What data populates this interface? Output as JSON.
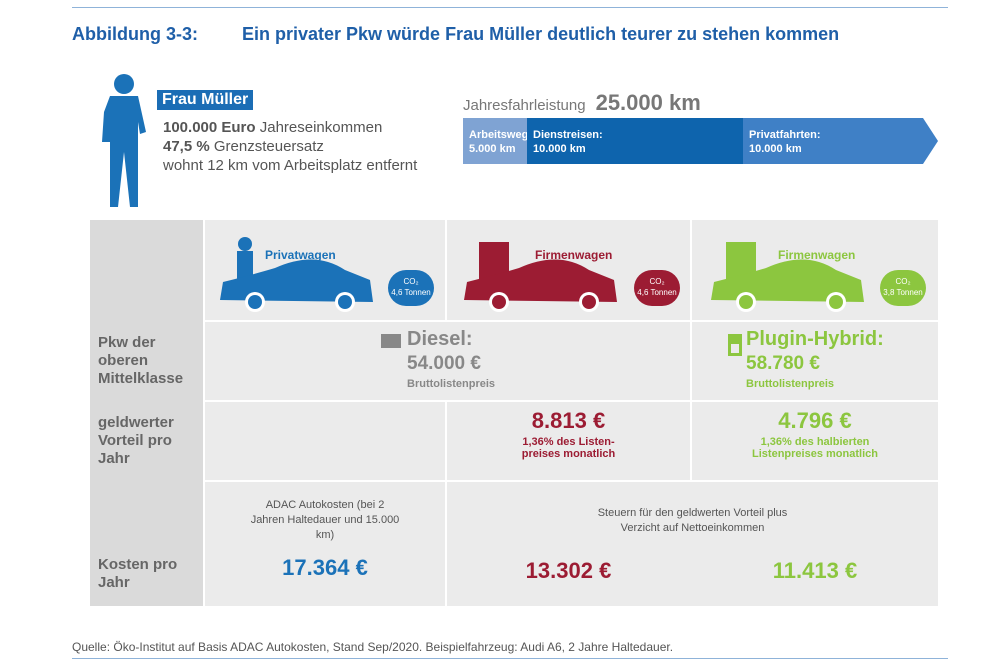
{
  "title": {
    "number": "Abbildung 3-3:",
    "text": "Ein privater Pkw würde Frau Müller deutlich teurer zu stehen kommen"
  },
  "profile": {
    "name": "Frau Müller",
    "income_value": "100.000 Euro",
    "income_label": "Jahreseinkommen",
    "tax_value": "47,5 %",
    "tax_label": "Grenzsteuersatz",
    "distance": "wohnt 12 km vom Arbeitsplatz entfernt"
  },
  "mileage": {
    "label": "Jahresfahrleistung",
    "value": "25.000 km",
    "segments": [
      {
        "label": "Arbeitsweg:",
        "value": "5.000 km",
        "color": "#7fa3d3"
      },
      {
        "label": "Dienstreisen:",
        "value": "10.000 km",
        "color": "#0e64ad"
      },
      {
        "label": "Privatfahrten:",
        "value": "10.000 km",
        "color": "#3f80c6"
      }
    ]
  },
  "colors": {
    "private": "#1b72b8",
    "company_diesel": "#9c1c33",
    "company_hybrid": "#8cc63f"
  },
  "cars": [
    {
      "label": "Privatwagen",
      "co2": "CO₂",
      "co2_value": "4,6 Tonnen"
    },
    {
      "label": "Firmenwagen",
      "co2": "CO₂",
      "co2_value": "4,6 Tonnen"
    },
    {
      "label": "Firmenwagen",
      "co2": "CO₂",
      "co2_value": "3,8 Tonnen"
    }
  ],
  "rows": {
    "class_label": "Pkw der oberen Mittelklasse",
    "benefit_label": "geldwerter Vorteil pro Jahr",
    "cost_label": "Kosten pro Jahr"
  },
  "diesel": {
    "title": "Diesel:",
    "price": "54.000 €",
    "price_label": "Bruttolistenpreis"
  },
  "hybrid": {
    "title": "Plugin-Hybrid:",
    "price": "58.780 €",
    "price_label": "Bruttolistenpreis"
  },
  "benefit": {
    "diesel_value": "8.813 €",
    "diesel_note": "1,36% des Listen-preises monatlich",
    "hybrid_value": "4.796 €",
    "hybrid_note": "1,36% des halbierten Listenpreises monatlich"
  },
  "costs": {
    "private_note": "ADAC Autokosten (bei 2 Jahren Haltedauer und 15.000 km)",
    "company_note": "Steuern für den geldwerten Vorteil plus Verzicht auf Nettoeinkommen",
    "private": "17.364 €",
    "diesel": "13.302 €",
    "hybrid": "11.413 €"
  },
  "source": "Quelle: Öko-Institut auf Basis ADAC Autokosten, Stand Sep/2020. Beispielfahrzeug: Audi A6, 2 Jahre Haltedauer."
}
